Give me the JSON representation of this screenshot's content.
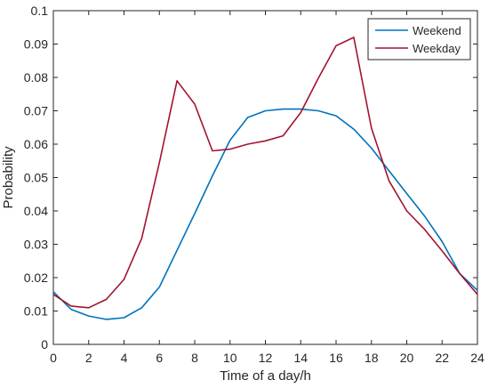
{
  "chart_data": {
    "type": "line",
    "xlabel": "Time of a day/h",
    "ylabel": "Probability",
    "xlim": [
      0,
      24
    ],
    "ylim": [
      0,
      0.1
    ],
    "xticks": [
      0,
      2,
      4,
      6,
      8,
      10,
      12,
      14,
      16,
      18,
      20,
      22,
      24
    ],
    "yticks": [
      0,
      0.01,
      0.02,
      0.03,
      0.04,
      0.05,
      0.06,
      0.07,
      0.08,
      0.09,
      0.1
    ],
    "x": [
      0,
      1,
      2,
      3,
      4,
      5,
      6,
      7,
      8,
      9,
      10,
      11,
      12,
      13,
      14,
      15,
      16,
      17,
      18,
      19,
      20,
      21,
      22,
      23,
      24
    ],
    "grid": false,
    "legend_position": "top-right",
    "series": [
      {
        "name": "Weekend",
        "color": "#0072BD",
        "values": [
          0.0158,
          0.0105,
          0.0085,
          0.0075,
          0.008,
          0.011,
          0.0172,
          0.0282,
          0.0392,
          0.0505,
          0.0612,
          0.068,
          0.07,
          0.0705,
          0.0705,
          0.07,
          0.0685,
          0.0645,
          0.0588,
          0.052,
          0.0452,
          0.0385,
          0.0308,
          0.0212,
          0.0162
        ]
      },
      {
        "name": "Weekday",
        "color": "#A2142F",
        "values": [
          0.015,
          0.0115,
          0.011,
          0.0135,
          0.0195,
          0.0318,
          0.0545,
          0.079,
          0.072,
          0.058,
          0.0585,
          0.06,
          0.061,
          0.0625,
          0.0695,
          0.0798,
          0.0895,
          0.092,
          0.0648,
          0.049,
          0.04,
          0.0345,
          0.028,
          0.0212,
          0.015
        ]
      }
    ]
  }
}
